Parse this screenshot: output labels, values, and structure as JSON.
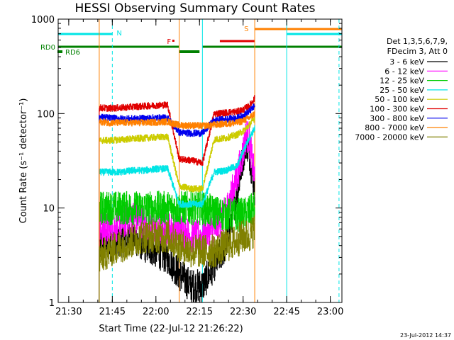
{
  "chart_data": {
    "type": "line",
    "title": "HESSI Observing Summary Count Rates",
    "ylabel": "Count Rate (s⁻¹ detector⁻¹)",
    "xlabel": "Start Time (22-Jul-12 21:26:22)",
    "y_scale": "log",
    "ylim": [
      1,
      1000
    ],
    "xlim": [
      "21:26:22",
      "23:04:00"
    ],
    "grid": false,
    "x_ticks": [
      "21:30",
      "21:45",
      "22:00",
      "22:15",
      "22:30",
      "22:45",
      "23:00"
    ],
    "y_ticks": [
      "1",
      "10",
      "100",
      "1000"
    ],
    "legend_header": [
      "Det 1,3,5,6,7,9,",
      "FDecim 3, Att 0"
    ],
    "footer": "23-Jul-2012 14:37",
    "series": [
      {
        "name": "3 - 6 keV",
        "color": "#000000",
        "x": [
          "21:40:30",
          "21:44",
          "21:48",
          "21:52",
          "21:56",
          "22:00",
          "22:04",
          "22:08",
          "22:12",
          "22:16",
          "22:20",
          "22:24",
          "22:28",
          "22:30",
          "22:31",
          "22:32",
          "22:34"
        ],
        "y": [
          4,
          4,
          4.5,
          5,
          4,
          3.5,
          3,
          2,
          1.5,
          1.5,
          2.5,
          4,
          15,
          35,
          50,
          40,
          15
        ]
      },
      {
        "name": "6 - 12 keV",
        "color": "#ff00ff",
        "x": [
          "21:40:30",
          "21:44",
          "21:48",
          "21:52",
          "21:56",
          "22:00",
          "22:04",
          "22:08",
          "22:12",
          "22:16",
          "22:20",
          "22:24",
          "22:28",
          "22:30",
          "22:31",
          "22:32",
          "22:34"
        ],
        "y": [
          6,
          6,
          7,
          8,
          7,
          6,
          6,
          6,
          5,
          5,
          6,
          9,
          22,
          40,
          60,
          55,
          20
        ]
      },
      {
        "name": "12 - 25 keV",
        "color": "#00cc00",
        "x": [
          "21:40:30",
          "21:44",
          "21:48",
          "21:52",
          "21:56",
          "22:00",
          "22:04",
          "22:08",
          "22:12",
          "22:16",
          "22:20",
          "22:24",
          "22:28",
          "22:30",
          "22:32",
          "22:34"
        ],
        "y": [
          10,
          10,
          10,
          10,
          10,
          10,
          10,
          10,
          10,
          10,
          9,
          8.5,
          8.5,
          8.5,
          9,
          10
        ]
      },
      {
        "name": "25 - 50 keV",
        "color": "#00e5e5",
        "x": [
          "21:40:30",
          "21:44",
          "21:48",
          "21:52",
          "21:56",
          "22:00",
          "22:04",
          "22:08",
          "22:12",
          "22:16",
          "22:20",
          "22:24",
          "22:28",
          "22:30",
          "22:32",
          "22:34"
        ],
        "y": [
          24,
          24,
          24,
          25,
          25,
          26,
          26,
          11,
          11,
          11,
          24,
          25,
          28,
          40,
          55,
          70
        ]
      },
      {
        "name": "50 - 100 keV",
        "color": "#cccc00",
        "x": [
          "21:40:30",
          "21:44",
          "21:48",
          "21:52",
          "21:56",
          "22:00",
          "22:04",
          "22:08",
          "22:12",
          "22:16",
          "22:20",
          "22:24",
          "22:28",
          "22:30",
          "22:32",
          "22:34"
        ],
        "y": [
          52,
          52,
          53,
          54,
          55,
          56,
          57,
          17,
          16,
          16,
          53,
          55,
          60,
          65,
          75,
          90
        ]
      },
      {
        "name": "100 - 300 keV",
        "color": "#e00000",
        "x": [
          "21:40:30",
          "21:44",
          "21:48",
          "21:52",
          "21:56",
          "22:00",
          "22:04",
          "22:08",
          "22:12",
          "22:16",
          "22:20",
          "22:24",
          "22:28",
          "22:30",
          "22:32",
          "22:34"
        ],
        "y": [
          115,
          114,
          115,
          118,
          120,
          122,
          124,
          33,
          32,
          30,
          100,
          102,
          105,
          110,
          120,
          145
        ]
      },
      {
        "name": "300 - 800 keV",
        "color": "#0000ee",
        "x": [
          "21:40:30",
          "21:44",
          "21:48",
          "21:52",
          "21:56",
          "22:00",
          "22:04",
          "22:08",
          "22:12",
          "22:16",
          "22:20",
          "22:24",
          "22:28",
          "22:30",
          "22:32",
          "22:34"
        ],
        "y": [
          92,
          90,
          88,
          88,
          89,
          90,
          90,
          63,
          62,
          62,
          85,
          87,
          90,
          95,
          105,
          120
        ]
      },
      {
        "name": "800 - 7000 keV",
        "color": "#ff8000",
        "x": [
          "21:40:30",
          "21:44",
          "21:48",
          "21:52",
          "21:56",
          "22:00",
          "22:04",
          "22:08",
          "22:12",
          "22:16",
          "22:20",
          "22:24",
          "22:28",
          "22:30",
          "22:32",
          "22:34"
        ],
        "y": [
          82,
          80,
          80,
          80,
          80,
          81,
          82,
          75,
          75,
          74,
          76,
          78,
          80,
          84,
          90,
          100
        ]
      },
      {
        "name": "7000 - 20000 keV",
        "color": "#808000",
        "x": [
          "21:40:30",
          "21:44",
          "21:48",
          "21:52",
          "21:56",
          "22:00",
          "22:04",
          "22:08",
          "22:12",
          "22:16",
          "22:20",
          "22:24",
          "22:28",
          "22:30",
          "22:32",
          "22:34"
        ],
        "y": [
          3,
          3.5,
          4,
          4.5,
          5,
          5,
          5,
          4,
          3.5,
          3.5,
          3.5,
          4,
          4.5,
          5,
          5,
          6
        ]
      }
    ],
    "vertical_markers": [
      {
        "time": "21:26:22",
        "color": "#00e5e5",
        "style": "solid"
      },
      {
        "time": "21:40:30",
        "color": "#ff8000",
        "style": "solid"
      },
      {
        "time": "21:45:00",
        "color": "#00e5e5",
        "style": "dashed"
      },
      {
        "time": "22:08:00",
        "color": "#ff8000",
        "style": "solid"
      },
      {
        "time": "22:16:00",
        "color": "#00e5e5",
        "style": "solid"
      },
      {
        "time": "22:34:00",
        "color": "#ff8000",
        "style": "solid"
      },
      {
        "time": "22:45:00",
        "color": "#00e5e5",
        "style": "solid"
      },
      {
        "time": "23:03:00",
        "color": "#00e5e5",
        "style": "dashed"
      }
    ],
    "flag_bars": [
      {
        "label": "N",
        "color": "#00e5e5",
        "row": "top",
        "segments": [
          [
            "21:26:22",
            "21:45:00"
          ],
          [
            "22:45:00",
            "23:04:00"
          ]
        ]
      },
      {
        "label": "F",
        "color": "#e00000",
        "row": "mid",
        "segments": [
          [
            "22:22:00",
            "22:34:00"
          ]
        ]
      },
      {
        "label": "S",
        "color": "#ff8000",
        "row": "upper",
        "segments": [
          [
            "22:34:00",
            "23:04:00"
          ]
        ]
      },
      {
        "label": "RD0",
        "color": "#008000",
        "row": "rd0",
        "segments": [
          [
            "21:26:22",
            "22:08:00"
          ],
          [
            "22:16:00",
            "23:04:00"
          ]
        ]
      },
      {
        "label": "RD6",
        "color": "#008000",
        "row": "rd6",
        "segments": [
          [
            "22:08:00",
            "22:15:00"
          ]
        ]
      }
    ],
    "flag_point": {
      "time": "22:06:00",
      "color": "#e00000"
    }
  }
}
